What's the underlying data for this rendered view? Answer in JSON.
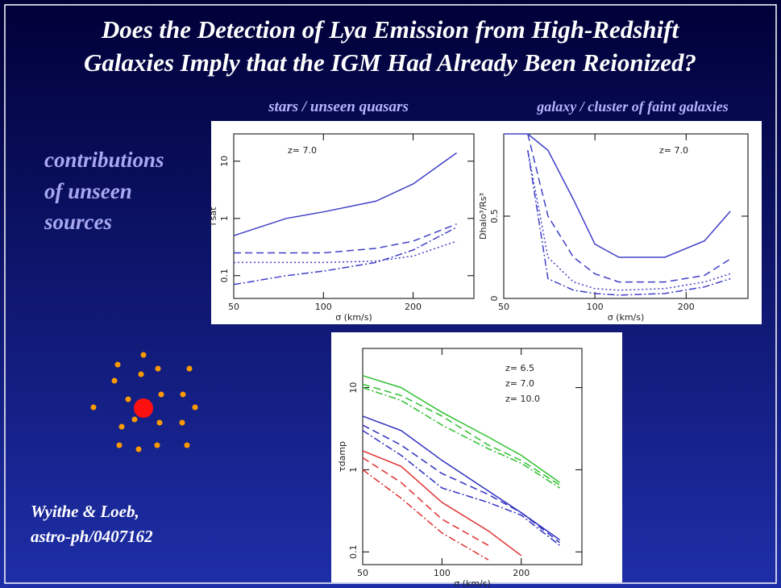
{
  "title_lines": [
    "Does the Detection of Lya Emission from High-Redshift",
    "Galaxies  Imply that the IGM Had Already Been Reionized?"
  ],
  "subtitles": [
    "stars / unseen quasars",
    "galaxy / cluster of faint  galaxies"
  ],
  "side_text": [
    "contributions",
    "of unseen",
    "sources"
  ],
  "citation": [
    "Wyithe & Loeb,",
    "astro-ph/0407162"
  ],
  "chart_data": [
    {
      "type": "line",
      "xlabel": "σ (km/s)",
      "ylabel": "Γsat",
      "annotation": "z= 7.0",
      "xlog": true,
      "ylog": true,
      "xlim": [
        50,
        320
      ],
      "ylim": [
        0.04,
        30
      ],
      "xticks": [
        50,
        100,
        200
      ],
      "yticks": [
        0.1,
        1,
        10
      ],
      "x": [
        50,
        75,
        100,
        150,
        200,
        280
      ],
      "series": [
        {
          "color": "#4040c8",
          "dash": "solid",
          "values": [
            0.5,
            1,
            1.3,
            2,
            4,
            14
          ]
        },
        {
          "color": "#4040c8",
          "dash": "dashed",
          "values": [
            0.25,
            0.25,
            0.25,
            0.3,
            0.4,
            0.8
          ]
        },
        {
          "color": "#4040c8",
          "dash": "dotted",
          "values": [
            0.17,
            0.17,
            0.17,
            0.18,
            0.22,
            0.4
          ]
        },
        {
          "color": "#4040c8",
          "dash": "dashdot",
          "values": [
            0.07,
            0.1,
            0.12,
            0.17,
            0.28,
            0.7
          ]
        }
      ]
    },
    {
      "type": "line",
      "xlabel": "σ (km/s)",
      "ylabel": "Dhalo³/Rs³",
      "annotation": "z= 7.0",
      "xlog": true,
      "ylog": false,
      "xlim": [
        50,
        320
      ],
      "ylim": [
        0,
        1
      ],
      "xticks": [
        50,
        100,
        200
      ],
      "yticks": [
        0,
        0.5
      ],
      "x": [
        50,
        60,
        70,
        85,
        100,
        120,
        170,
        230,
        280
      ],
      "series": [
        {
          "color": "#4040c8",
          "dash": "solid",
          "values": [
            1,
            1,
            0.9,
            0.6,
            0.33,
            0.25,
            0.25,
            0.35,
            0.53
          ]
        },
        {
          "color": "#4040c8",
          "dash": "dashed",
          "values": [
            null,
            1,
            0.5,
            0.25,
            0.15,
            0.1,
            0.1,
            0.14,
            0.24
          ]
        },
        {
          "color": "#4040c8",
          "dash": "dotted",
          "values": [
            null,
            0.9,
            0.25,
            0.1,
            0.06,
            0.05,
            0.06,
            0.1,
            0.15
          ]
        },
        {
          "color": "#4040c8",
          "dash": "dashdot",
          "values": [
            null,
            0.9,
            0.12,
            0.05,
            0.03,
            0.02,
            0.03,
            0.07,
            0.12
          ]
        }
      ]
    },
    {
      "type": "line",
      "xlabel": "σ (km/s)",
      "ylabel": "τdamp",
      "xlog": true,
      "ylog": true,
      "xlim": [
        50,
        340
      ],
      "ylim": [
        0.07,
        30
      ],
      "xticks": [
        50,
        100,
        200
      ],
      "yticks": [
        0.1,
        1,
        10
      ],
      "x": [
        50,
        70,
        100,
        150,
        200,
        280
      ],
      "series": [
        {
          "name": "z= 6.5",
          "color": "#e03030",
          "dash": "solid",
          "values": [
            1.7,
            1.1,
            0.4,
            0.18,
            0.09,
            null
          ]
        },
        {
          "color": "#e03030",
          "dash": "dashed",
          "values": [
            1.4,
            0.7,
            0.25,
            0.12,
            null,
            null
          ]
        },
        {
          "color": "#e03030",
          "dash": "dashdot",
          "values": [
            1.0,
            0.45,
            0.17,
            0.08,
            null,
            null
          ]
        },
        {
          "name": "z= 7.0",
          "color": "#3030c0",
          "dash": "solid",
          "values": [
            4.5,
            3,
            1.3,
            0.55,
            0.3,
            0.14
          ]
        },
        {
          "color": "#3030c0",
          "dash": "dashed",
          "values": [
            3.5,
            2,
            0.9,
            0.5,
            0.3,
            0.13
          ]
        },
        {
          "color": "#3030c0",
          "dash": "dashdot",
          "values": [
            3,
            1.5,
            0.6,
            0.4,
            0.28,
            0.12
          ]
        },
        {
          "name": "z= 10.0",
          "color": "#30c030",
          "dash": "solid",
          "values": [
            14,
            10,
            5,
            2.5,
            1.5,
            0.7
          ]
        },
        {
          "color": "#30c030",
          "dash": "dashed",
          "values": [
            11,
            8,
            4.5,
            2,
            1.3,
            0.65
          ]
        },
        {
          "color": "#30c030",
          "dash": "dashdot",
          "values": [
            10,
            7,
            3.5,
            1.8,
            1.2,
            0.6
          ]
        }
      ]
    }
  ]
}
